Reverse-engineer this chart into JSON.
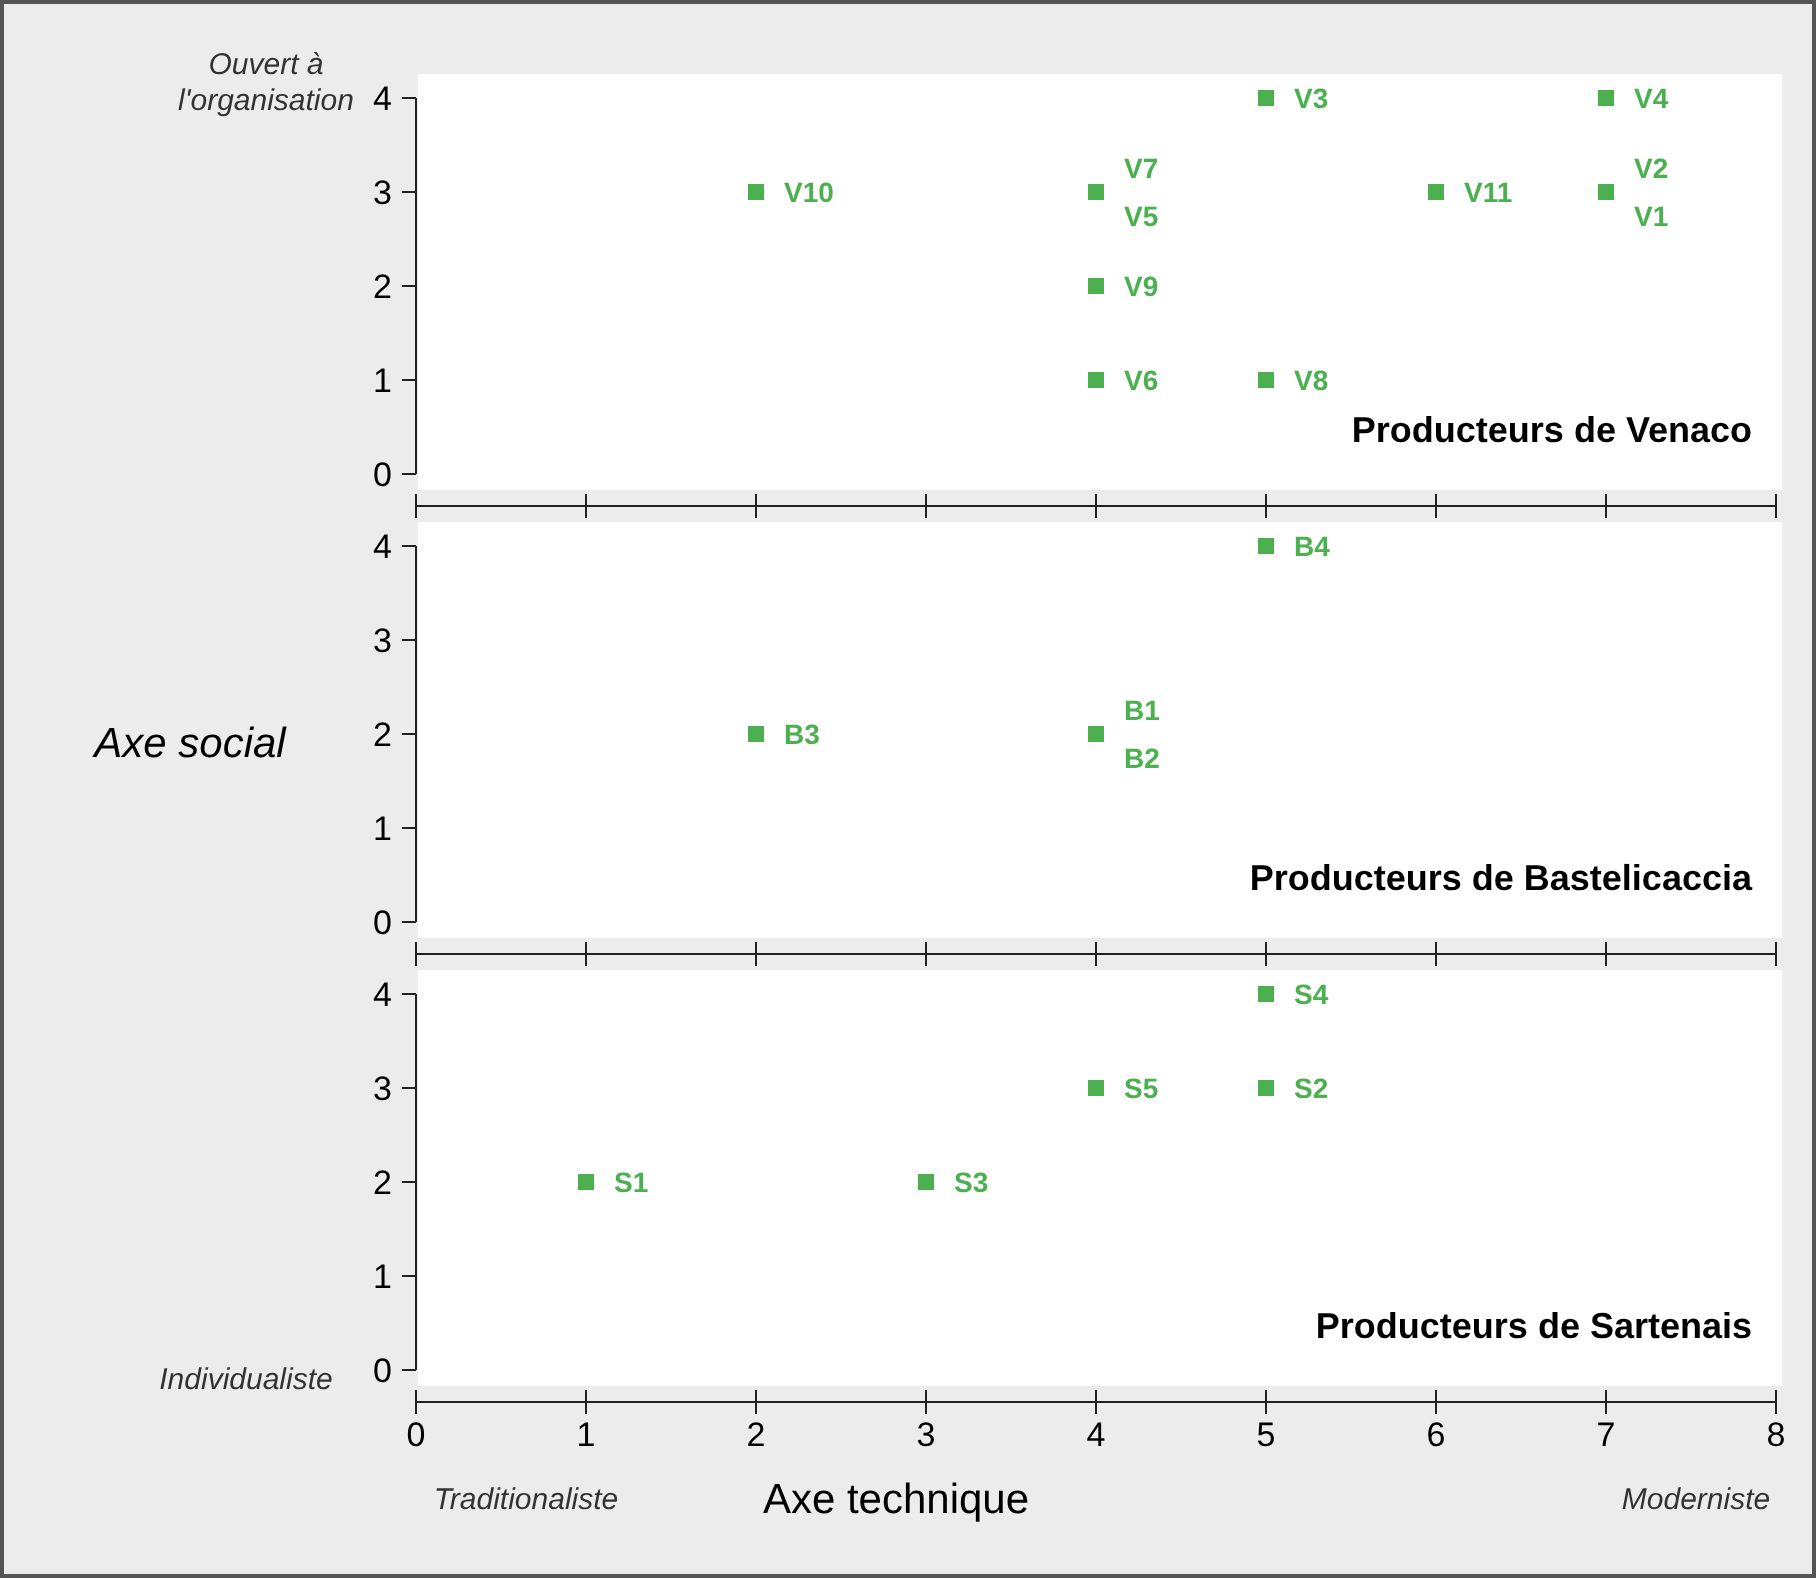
{
  "chart_data": [
    {
      "type": "scatter",
      "title": "Producteurs de Venaco",
      "xlim": [
        0,
        8
      ],
      "xticks": [
        0,
        1,
        2,
        3,
        4,
        5,
        6,
        7,
        8
      ],
      "ylim": [
        0,
        4
      ],
      "yticks": [
        0,
        1,
        2,
        3,
        4
      ],
      "tick_labels": "y",
      "marker": "square",
      "grid": false,
      "series": [
        {
          "color": "#4caf50",
          "x": [
            2,
            4,
            4,
            4,
            5,
            5,
            6,
            7,
            7
          ],
          "values": [
            3,
            3,
            2,
            1,
            4,
            1,
            3,
            4,
            3
          ]
        }
      ],
      "annotations": [
        "Ouvert à l'organisation",
        {
          "text": "V10",
          "x": 2,
          "y": 3
        },
        {
          "text": "V7",
          "x": 4,
          "y": 3
        },
        {
          "text": "V5",
          "x": 4,
          "y": 3
        },
        {
          "text": "V9",
          "x": 4,
          "y": 2
        },
        {
          "text": "V6",
          "x": 4,
          "y": 1
        },
        {
          "text": "V3",
          "x": 5,
          "y": 4
        },
        {
          "text": "V8",
          "x": 5,
          "y": 1
        },
        {
          "text": "V11",
          "x": 6,
          "y": 3
        },
        {
          "text": "V4",
          "x": 7,
          "y": 4
        },
        {
          "text": "V2",
          "x": 7,
          "y": 3
        },
        {
          "text": "V1",
          "x": 7,
          "y": 3
        }
      ]
    },
    {
      "type": "scatter",
      "title": "Producteurs de Bastelicaccia",
      "ylabel": "Axe social",
      "xlim": [
        0,
        8
      ],
      "xticks": [
        0,
        1,
        2,
        3,
        4,
        5,
        6,
        7,
        8
      ],
      "ylim": [
        0,
        4
      ],
      "yticks": [
        0,
        1,
        2,
        3,
        4
      ],
      "tick_labels": "y",
      "marker": "square",
      "grid": false,
      "series": [
        {
          "color": "#4caf50",
          "x": [
            2,
            4,
            5
          ],
          "values": [
            2,
            2,
            4
          ]
        }
      ],
      "annotations": [
        {
          "text": "B3",
          "x": 2,
          "y": 2
        },
        {
          "text": "B1",
          "x": 4,
          "y": 2
        },
        {
          "text": "B2",
          "x": 4,
          "y": 2
        },
        {
          "text": "B4",
          "x": 5,
          "y": 4
        }
      ]
    },
    {
      "type": "scatter",
      "title": "Producteurs de Sartenais",
      "xlabel": "Axe technique",
      "xlim": [
        0,
        8
      ],
      "xticks": [
        0,
        1,
        2,
        3,
        4,
        5,
        6,
        7,
        8
      ],
      "ylim": [
        0,
        4
      ],
      "yticks": [
        0,
        1,
        2,
        3,
        4
      ],
      "marker": "square",
      "grid": false,
      "series": [
        {
          "color": "#4caf50",
          "x": [
            1,
            3,
            4,
            5,
            5
          ],
          "values": [
            2,
            2,
            3,
            4,
            3
          ]
        }
      ],
      "annotations": [
        "Individualiste",
        "Traditionaliste",
        "Moderniste",
        {
          "text": "S1",
          "x": 1,
          "y": 2
        },
        {
          "text": "S3",
          "x": 3,
          "y": 2
        },
        {
          "text": "S5",
          "x": 4,
          "y": 3
        },
        {
          "text": "S4",
          "x": 5,
          "y": 4
        },
        {
          "text": "S2",
          "x": 5,
          "y": 3
        }
      ]
    }
  ]
}
